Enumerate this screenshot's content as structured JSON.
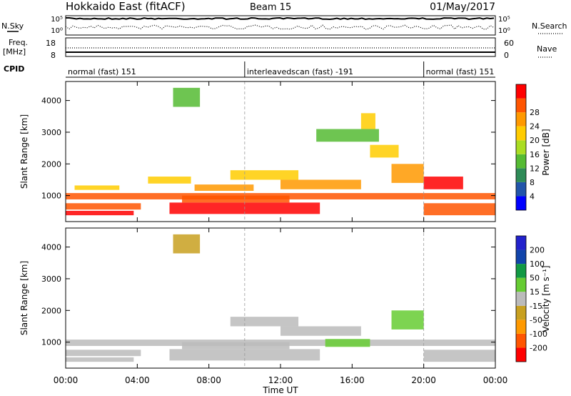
{
  "header": {
    "radar": "Hokkaido East (fitACF)",
    "beam": "Beam 15",
    "date": "01/May/2017"
  },
  "status_panels": {
    "nsky_label": "N.Sky",
    "nsky_ticks": [
      "10^5",
      "10^0"
    ],
    "nsearch_label": "N.Search",
    "nsearch_ticks": [
      "10^5",
      "10^0"
    ],
    "freq_label": "Freq.",
    "freq_unit": "[MHz]",
    "freq_ticks": [
      "18",
      "8"
    ],
    "nave_label": "Nave",
    "nave_ticks": [
      "60",
      "0"
    ],
    "cpid_label": "CPID"
  },
  "cpid_segments": [
    {
      "label": "normal (fast) 151",
      "start_hour": 0,
      "end_hour": 10
    },
    {
      "label": "interleavedscan (fast) -191",
      "start_hour": 10,
      "end_hour": 20
    },
    {
      "label": "normal (fast) 151",
      "start_hour": 20,
      "end_hour": 24
    }
  ],
  "colors": {
    "power_scale": [
      "#0000ff",
      "#2255aa",
      "#2e8b57",
      "#55bb33",
      "#aadd22",
      "#ffcc00",
      "#ff9900",
      "#ff5500",
      "#ff0000"
    ],
    "velocity_scale": [
      "#2222cc",
      "#1144aa",
      "#119944",
      "#66cc33",
      "#bbbbbb",
      "#c8a020",
      "#ff9900",
      "#ff5500",
      "#ff0000"
    ]
  },
  "chart_data": [
    {
      "type": "heatmap",
      "name": "power",
      "xlabel": "",
      "ylabel": "Slant Range [km]",
      "xlim": [
        0,
        24
      ],
      "ylim": [
        180,
        4600
      ],
      "yticks": [
        "1000",
        "2000",
        "3000",
        "4000"
      ],
      "scale_label": "Power [dB]",
      "scale_ticks": [
        "4",
        "8",
        "12",
        "16",
        "20",
        "24",
        "28"
      ],
      "scale_range": [
        0,
        32
      ],
      "bands": [
        {
          "x": [
            0.0,
            24.0
          ],
          "y": [
            880,
            1080
          ],
          "value": 25
        },
        {
          "x": [
            0.0,
            4.2
          ],
          "y": [
            560,
            760
          ],
          "value": 27
        },
        {
          "x": [
            0.0,
            3.8
          ],
          "y": [
            380,
            520
          ],
          "value": 30
        },
        {
          "x": [
            0.5,
            3.0
          ],
          "y": [
            1180,
            1320
          ],
          "value": 18
        },
        {
          "x": [
            4.6,
            7.0
          ],
          "y": [
            1380,
            1600
          ],
          "value": 20
        },
        {
          "x": [
            5.8,
            14.2
          ],
          "y": [
            420,
            780
          ],
          "value": 29
        },
        {
          "x": [
            6.5,
            12.5
          ],
          "y": [
            780,
            1000
          ],
          "value": 27
        },
        {
          "x": [
            7.2,
            10.5
          ],
          "y": [
            1150,
            1350
          ],
          "value": 22
        },
        {
          "x": [
            9.2,
            13.0
          ],
          "y": [
            1500,
            1800
          ],
          "value": 20
        },
        {
          "x": [
            12.0,
            16.5
          ],
          "y": [
            1200,
            1500
          ],
          "value": 22
        },
        {
          "x": [
            14.0,
            17.5
          ],
          "y": [
            2700,
            3100
          ],
          "value": 14
        },
        {
          "x": [
            17.0,
            18.6
          ],
          "y": [
            2200,
            2600
          ],
          "value": 18
        },
        {
          "x": [
            18.2,
            20.0
          ],
          "y": [
            1400,
            2000
          ],
          "value": 22
        },
        {
          "x": [
            20.0,
            22.2
          ],
          "y": [
            1200,
            1600
          ],
          "value": 29
        },
        {
          "x": [
            20.0,
            24.0
          ],
          "y": [
            380,
            760
          ],
          "value": 28
        },
        {
          "x": [
            6.0,
            7.5
          ],
          "y": [
            3800,
            4400
          ],
          "value": 14
        },
        {
          "x": [
            16.5,
            17.3
          ],
          "y": [
            3100,
            3600
          ],
          "value": 18
        }
      ]
    },
    {
      "type": "heatmap",
      "name": "velocity",
      "xlabel": "Time UT",
      "ylabel": "Slant Range [km]",
      "xlim": [
        0,
        24
      ],
      "ylim": [
        180,
        4600
      ],
      "xticks": [
        "00:00",
        "04:00",
        "08:00",
        "12:00",
        "16:00",
        "20:00",
        "00:00"
      ],
      "yticks": [
        "1000",
        "2000",
        "3000",
        "4000"
      ],
      "scale_label": "Velocity [m s^-1]",
      "scale_ticks": [
        "200",
        "100",
        "50",
        "15",
        "-15",
        "-50",
        "-100",
        "-200"
      ],
      "scale_range": [
        -250,
        250
      ],
      "bands": [
        {
          "x": [
            0.0,
            24.0
          ],
          "y": [
            880,
            1080
          ],
          "value": 0
        },
        {
          "x": [
            0.0,
            4.2
          ],
          "y": [
            560,
            760
          ],
          "value": 0
        },
        {
          "x": [
            0.0,
            3.8
          ],
          "y": [
            380,
            520
          ],
          "value": 0
        },
        {
          "x": [
            5.8,
            14.2
          ],
          "y": [
            420,
            780
          ],
          "value": 0
        },
        {
          "x": [
            6.5,
            12.5
          ],
          "y": [
            780,
            1000
          ],
          "value": 0
        },
        {
          "x": [
            12.0,
            16.5
          ],
          "y": [
            1200,
            1500
          ],
          "value": 0
        },
        {
          "x": [
            14.5,
            17.0
          ],
          "y": [
            850,
            1100
          ],
          "value": 40
        },
        {
          "x": [
            18.2,
            20.0
          ],
          "y": [
            1400,
            2000
          ],
          "value": 30
        },
        {
          "x": [
            20.0,
            24.0
          ],
          "y": [
            380,
            760
          ],
          "value": 0
        },
        {
          "x": [
            6.0,
            7.5
          ],
          "y": [
            3800,
            4400
          ],
          "value": -30
        },
        {
          "x": [
            9.2,
            13.0
          ],
          "y": [
            1500,
            1800
          ],
          "value": 0
        }
      ]
    }
  ]
}
